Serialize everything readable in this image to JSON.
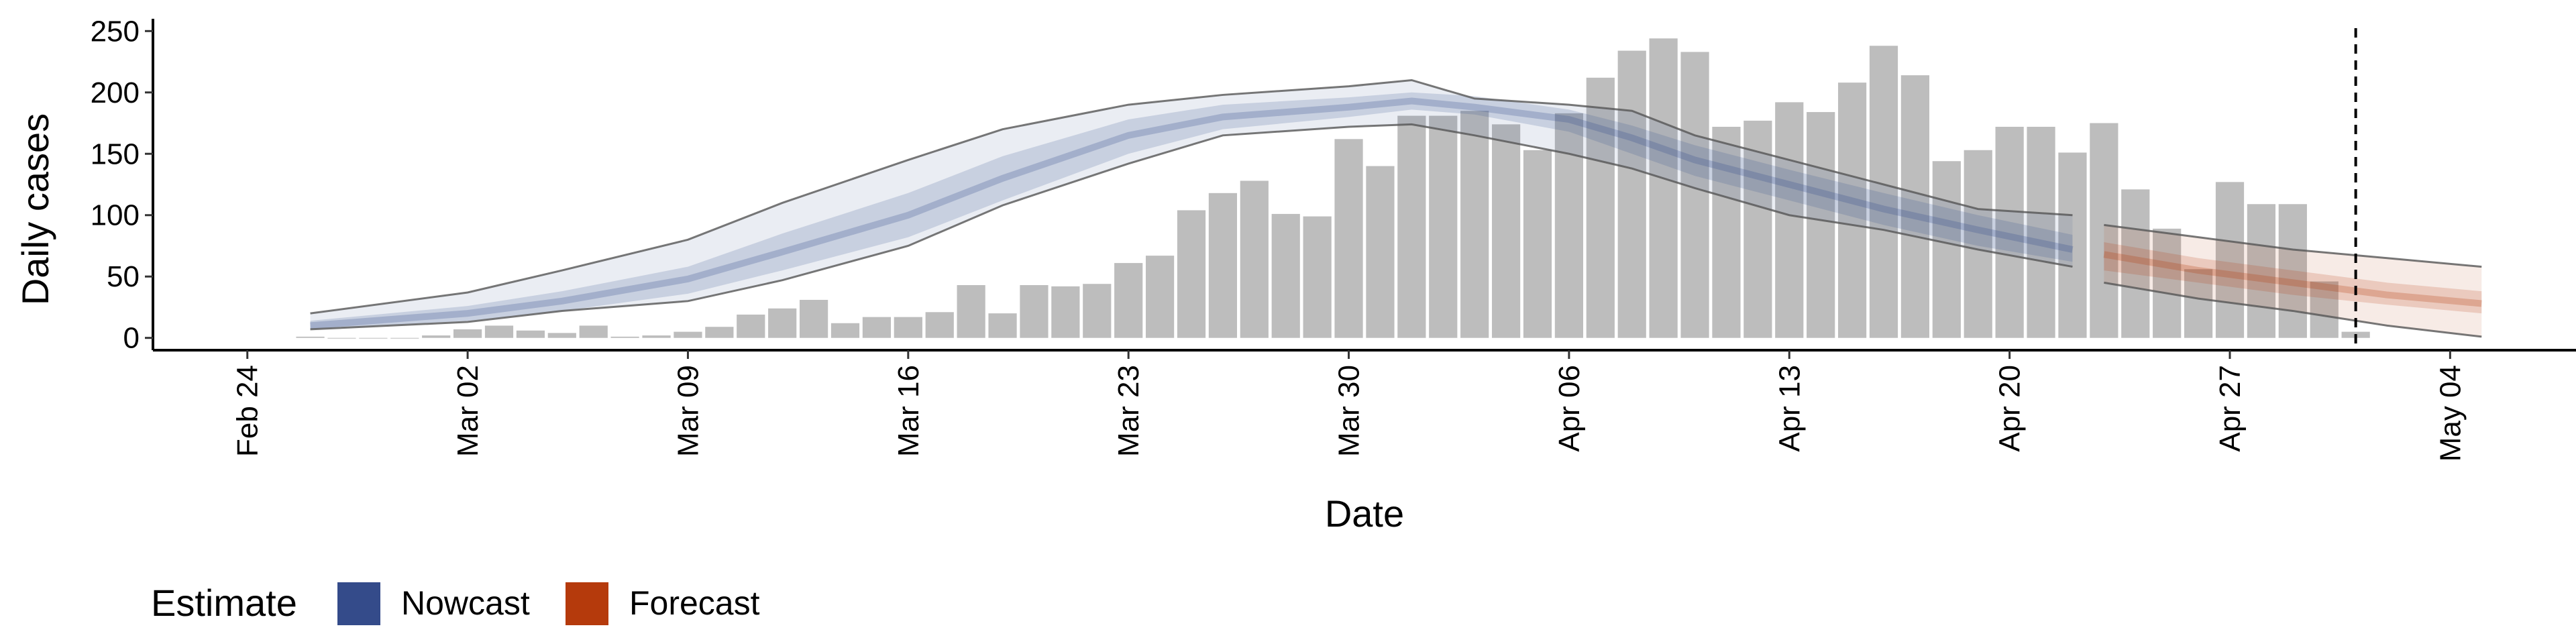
{
  "chart_data": {
    "type": "bar",
    "xlabel": "Date",
    "ylabel": "Daily cases",
    "ylim": [
      -10,
      260
    ],
    "xlim": [
      "2020-02-21",
      "2020-05-08"
    ],
    "y_ticks": [
      0,
      50,
      100,
      150,
      200,
      250
    ],
    "x_ticks": [
      {
        "date": "2020-02-24",
        "label": "Feb 24"
      },
      {
        "date": "2020-03-02",
        "label": "Mar 02"
      },
      {
        "date": "2020-03-09",
        "label": "Mar 09"
      },
      {
        "date": "2020-03-16",
        "label": "Mar 16"
      },
      {
        "date": "2020-03-23",
        "label": "Mar 23"
      },
      {
        "date": "2020-03-30",
        "label": "Mar 30"
      },
      {
        "date": "2020-04-06",
        "label": "Apr 06"
      },
      {
        "date": "2020-04-13",
        "label": "Apr 13"
      },
      {
        "date": "2020-04-20",
        "label": "Apr 20"
      },
      {
        "date": "2020-04-27",
        "label": "Apr 27"
      },
      {
        "date": "2020-05-04",
        "label": "May 04"
      }
    ],
    "grid": false,
    "legend_placement": "bottom-left",
    "legend": {
      "title": "Estimate",
      "entries": [
        {
          "label": "Nowcast",
          "color": "#344b8a"
        },
        {
          "label": "Forecast",
          "color": "#b53a0c"
        }
      ]
    },
    "reference_line": {
      "date": "2020-05-01",
      "style": "dashed"
    },
    "bar_color": "#bdbdbd",
    "observed_cases": {
      "dates": [
        "2020-02-26",
        "2020-02-27",
        "2020-02-28",
        "2020-02-29",
        "2020-03-01",
        "2020-03-02",
        "2020-03-03",
        "2020-03-04",
        "2020-03-05",
        "2020-03-06",
        "2020-03-07",
        "2020-03-08",
        "2020-03-09",
        "2020-03-10",
        "2020-03-11",
        "2020-03-12",
        "2020-03-13",
        "2020-03-14",
        "2020-03-15",
        "2020-03-16",
        "2020-03-17",
        "2020-03-18",
        "2020-03-19",
        "2020-03-20",
        "2020-03-21",
        "2020-03-22",
        "2020-03-23",
        "2020-03-24",
        "2020-03-25",
        "2020-03-26",
        "2020-03-27",
        "2020-03-28",
        "2020-03-29",
        "2020-03-30",
        "2020-03-31",
        "2020-04-01",
        "2020-04-02",
        "2020-04-03",
        "2020-04-04",
        "2020-04-05",
        "2020-04-06",
        "2020-04-07",
        "2020-04-08",
        "2020-04-09",
        "2020-04-10",
        "2020-04-11",
        "2020-04-12",
        "2020-04-13",
        "2020-04-14",
        "2020-04-15",
        "2020-04-16",
        "2020-04-17",
        "2020-04-18",
        "2020-04-19",
        "2020-04-20",
        "2020-04-21",
        "2020-04-22",
        "2020-04-23",
        "2020-04-24",
        "2020-04-25",
        "2020-04-26",
        "2020-04-27",
        "2020-04-28",
        "2020-04-29",
        "2020-04-30"
      ],
      "values": [
        1,
        0,
        0,
        0,
        2,
        7,
        10,
        6,
        4,
        10,
        1,
        2,
        5,
        9,
        19,
        24,
        31,
        12,
        17,
        17,
        21,
        43,
        20,
        43,
        42,
        44,
        61,
        67,
        104,
        118,
        128,
        101,
        99,
        162,
        140,
        181,
        181,
        185,
        174,
        153,
        183,
        212,
        234,
        244,
        233,
        172,
        177,
        192,
        184,
        208,
        238,
        214,
        144,
        153,
        172,
        172,
        151,
        175,
        121,
        89,
        56,
        127,
        109,
        109,
        46
      ]
    },
    "last_bar": {
      "date": "2020-05-01",
      "value": 5
    },
    "nowcast": {
      "color": "#344b8a",
      "dates": [
        "2020-02-26",
        "2020-03-02",
        "2020-03-05",
        "2020-03-09",
        "2020-03-12",
        "2020-03-16",
        "2020-03-19",
        "2020-03-23",
        "2020-03-26",
        "2020-03-30",
        "2020-04-01",
        "2020-04-03",
        "2020-04-06",
        "2020-04-08",
        "2020-04-10",
        "2020-04-13",
        "2020-04-16",
        "2020-04-19",
        "2020-04-22"
      ],
      "median": [
        10,
        20,
        30,
        48,
        70,
        100,
        130,
        165,
        180,
        188,
        193,
        188,
        178,
        163,
        145,
        125,
        105,
        88,
        72
      ],
      "inner_lower": [
        7,
        14,
        22,
        36,
        55,
        82,
        112,
        150,
        170,
        180,
        186,
        182,
        168,
        150,
        132,
        112,
        92,
        75,
        62
      ],
      "inner_upper": [
        14,
        26,
        38,
        58,
        85,
        118,
        148,
        178,
        190,
        196,
        200,
        197,
        186,
        173,
        157,
        137,
        118,
        100,
        84
      ],
      "outer_lower": [
        7,
        13,
        22,
        30,
        47,
        75,
        108,
        142,
        165,
        172,
        174,
        165,
        150,
        138,
        122,
        100,
        88,
        72,
        58
      ],
      "outer_upper": [
        20,
        37,
        55,
        80,
        110,
        145,
        170,
        190,
        198,
        205,
        210,
        195,
        190,
        185,
        165,
        145,
        125,
        105,
        100
      ]
    },
    "forecast": {
      "color": "#b53a0c",
      "dates": [
        "2020-04-23",
        "2020-04-26",
        "2020-04-29",
        "2020-05-02",
        "2020-05-05"
      ],
      "median": [
        68,
        55,
        45,
        35,
        28
      ],
      "inner_lower": [
        55,
        45,
        35,
        27,
        20
      ],
      "inner_upper": [
        78,
        65,
        55,
        45,
        38
      ],
      "outer_lower": [
        45,
        32,
        22,
        10,
        1
      ],
      "outer_upper": [
        92,
        82,
        72,
        65,
        58
      ]
    }
  }
}
